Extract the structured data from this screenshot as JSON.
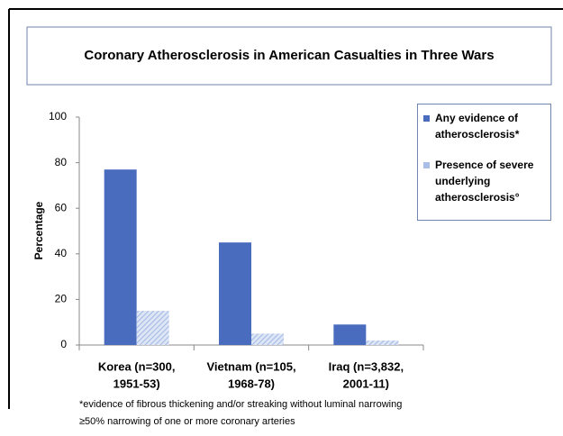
{
  "chart_data": {
    "type": "bar",
    "title": "Coronary Atherosclerosis in American Casualties in Three Wars",
    "y_label": "Percentage",
    "categories": [
      [
        "Korea (n=300,",
        "1951-53)"
      ],
      [
        "Vietnam (n=105,",
        "1968-78)"
      ],
      [
        "Iraq (n=3,832,",
        "2001-11)"
      ]
    ],
    "series": [
      {
        "name": "Any evidence of atherosclerosis*",
        "color": "#4a6cbf",
        "fill_style": "solid",
        "values": [
          77,
          45,
          9
        ]
      },
      {
        "name": "Presence of severe underlying atherosclerosis°",
        "color": "#a9bde6",
        "fill_style": "hatched",
        "values": [
          15,
          5,
          2
        ]
      }
    ],
    "ylim": [
      0,
      100
    ],
    "yticks": [
      0,
      20,
      40,
      60,
      80,
      100
    ],
    "footnotes": [
      "*evidence of fibrous thickening and/or streaking without luminal narrowing",
      "≥50% narrowing of one or more coronary arteries"
    ]
  }
}
